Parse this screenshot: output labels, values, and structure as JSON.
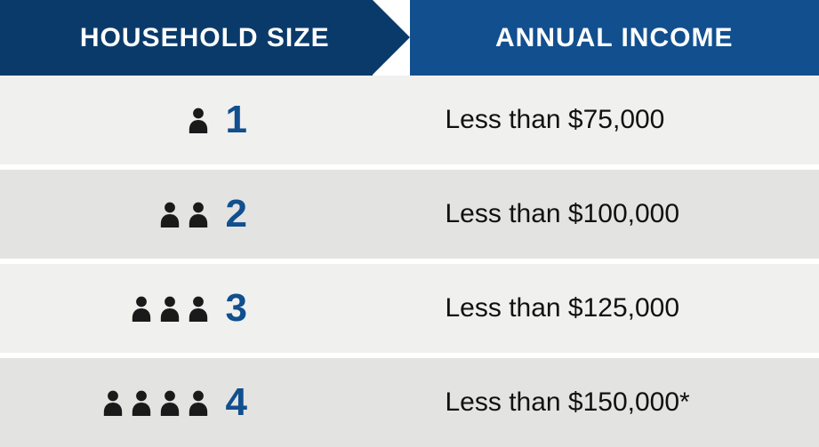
{
  "colors": {
    "header_left_bg": "#0a3a6a",
    "header_right_bg": "#114f8e",
    "header_text": "#ffffff",
    "row_odd_bg": "#f0f0ef",
    "row_even_bg": "#e3e3e2",
    "number_color": "#114f8e",
    "income_text_color": "#111111",
    "icon_color": "#1a1a1a"
  },
  "typography": {
    "header_fontsize": 30,
    "number_fontsize": 44,
    "income_fontsize": 30
  },
  "header": {
    "left": "HOUSEHOLD SIZE",
    "right": "ANNUAL INCOME"
  },
  "rows": [
    {
      "size": "1",
      "people": 1,
      "income": "Less than $75,000"
    },
    {
      "size": "2",
      "people": 2,
      "income": "Less than $100,000"
    },
    {
      "size": "3",
      "people": 3,
      "income": "Less than $125,000"
    },
    {
      "size": "4",
      "people": 4,
      "income": "Less than $150,000*"
    }
  ]
}
